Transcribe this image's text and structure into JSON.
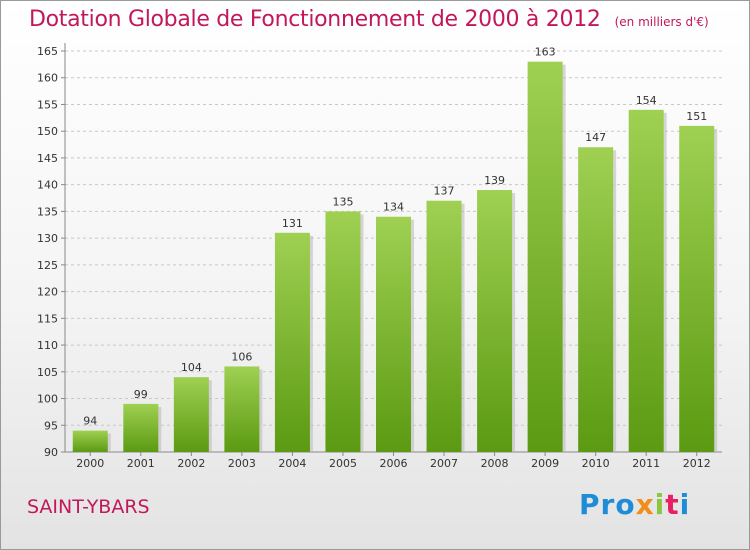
{
  "header": {
    "title": "Dotation Globale de Fonctionnement de 2000 à 2012",
    "unit": "(en milliers d'€)"
  },
  "footer": {
    "commune": "SAINT-YBARS",
    "brand": {
      "p1": "Pro",
      "p2": "x",
      "p3": "i",
      "p4": "t",
      "p5": "i"
    }
  },
  "colors": {
    "title": "#c2185b",
    "bar_top": "#9fd052",
    "bar_bottom": "#5b9a12"
  },
  "chart_data": {
    "type": "bar",
    "categories": [
      "2000",
      "2001",
      "2002",
      "2003",
      "2004",
      "2005",
      "2006",
      "2007",
      "2008",
      "2009",
      "2010",
      "2011",
      "2012"
    ],
    "values": [
      94,
      99,
      104,
      106,
      131,
      135,
      134,
      137,
      139,
      163,
      147,
      154,
      151
    ],
    "title": "Dotation Globale de Fonctionnement de 2000 à 2012",
    "subtitle": "(en milliers d'€)",
    "xlabel": "",
    "ylabel": "",
    "ylim": [
      90,
      165
    ],
    "yticks": [
      90,
      95,
      100,
      105,
      110,
      115,
      120,
      125,
      130,
      135,
      140,
      145,
      150,
      155,
      160,
      165
    ],
    "grid": true,
    "data_labels": true
  }
}
